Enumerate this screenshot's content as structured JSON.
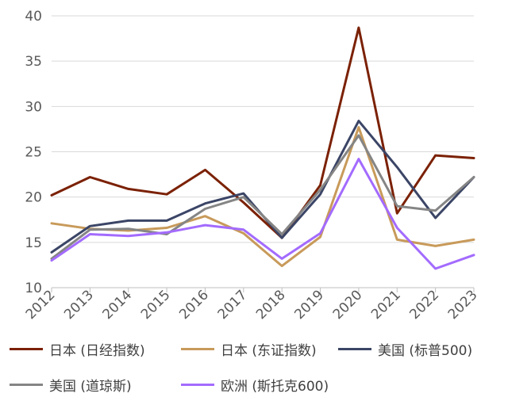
{
  "chart_data": {
    "type": "line",
    "x": [
      "2012",
      "2013",
      "2014",
      "2015",
      "2016",
      "2017",
      "2018",
      "2019",
      "2020",
      "2021",
      "2022",
      "2023"
    ],
    "ylim": [
      10,
      40
    ],
    "yticks": [
      10,
      15,
      20,
      25,
      30,
      35,
      40
    ],
    "grid": "horizontal",
    "legend_position": "bottom",
    "series": [
      {
        "name": "日本 (日经指数)",
        "color": "#7b2105",
        "values": [
          20.2,
          22.2,
          20.9,
          20.3,
          23.0,
          19.4,
          15.5,
          21.3,
          38.7,
          18.2,
          24.6,
          24.3
        ]
      },
      {
        "name": "日本 (东证指数)",
        "color": "#c89a5a",
        "values": [
          17.1,
          16.5,
          16.3,
          16.6,
          17.9,
          16.0,
          12.4,
          15.6,
          27.7,
          15.3,
          14.6,
          15.3
        ]
      },
      {
        "name": "美国 (标普500)",
        "color": "#3b4566",
        "values": [
          13.9,
          16.8,
          17.4,
          17.4,
          19.3,
          20.4,
          15.5,
          20.3,
          28.4,
          23.3,
          17.7,
          22.2
        ]
      },
      {
        "name": "美国 (道琼斯)",
        "color": "#858585",
        "values": [
          13.2,
          16.4,
          16.5,
          15.9,
          18.7,
          20.0,
          15.9,
          20.8,
          26.8,
          19.0,
          18.5,
          22.2
        ]
      },
      {
        "name": "欧洲 (斯托克600)",
        "color": "#a36bff",
        "values": [
          13.0,
          15.9,
          15.7,
          16.1,
          16.9,
          16.4,
          13.2,
          16.0,
          24.2,
          16.6,
          12.1,
          13.6
        ]
      }
    ]
  }
}
